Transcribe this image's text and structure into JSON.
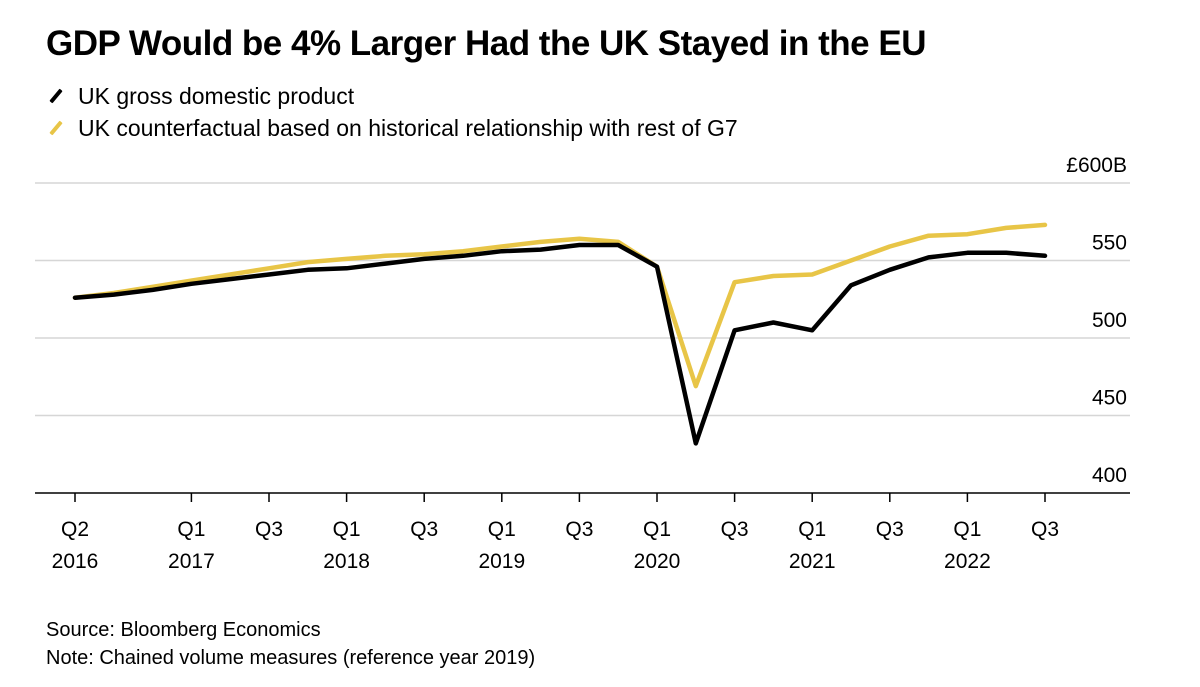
{
  "title": "GDP Would be 4% Larger Had the UK Stayed in the EU",
  "legend": [
    {
      "label": "UK gross domestic product",
      "color": "#000000"
    },
    {
      "label": "UK counterfactual based on historical relationship with rest of G7",
      "color": "#e8c547"
    }
  ],
  "footer": {
    "source": "Source: Bloomberg Economics",
    "note": "Note: Chained volume measures (reference year 2019)"
  },
  "chart_data": {
    "type": "line",
    "x": [
      "2016 Q2",
      "2016 Q3",
      "2016 Q4",
      "2017 Q1",
      "2017 Q2",
      "2017 Q3",
      "2017 Q4",
      "2018 Q1",
      "2018 Q2",
      "2018 Q3",
      "2018 Q4",
      "2019 Q1",
      "2019 Q2",
      "2019 Q3",
      "2019 Q4",
      "2020 Q1",
      "2020 Q2",
      "2020 Q3",
      "2020 Q4",
      "2021 Q1",
      "2021 Q2",
      "2021 Q3",
      "2021 Q4",
      "2022 Q1",
      "2022 Q2",
      "2022 Q3"
    ],
    "series": [
      {
        "name": "UK gross domestic product",
        "color": "#000000",
        "values": [
          526,
          528,
          531,
          535,
          538,
          541,
          544,
          545,
          548,
          551,
          553,
          556,
          557,
          560,
          560,
          546,
          432,
          505,
          510,
          505,
          534,
          544,
          552,
          555,
          555,
          553
        ]
      },
      {
        "name": "UK counterfactual based on historical relationship with rest of G7",
        "color": "#e8c547",
        "values": [
          526,
          529,
          533,
          537,
          541,
          545,
          549,
          551,
          553,
          554,
          556,
          559,
          562,
          564,
          562,
          546,
          469,
          536,
          540,
          541,
          550,
          559,
          566,
          567,
          571,
          573
        ]
      }
    ],
    "y_ticks": [
      {
        "value": 600,
        "label": "£600B"
      },
      {
        "value": 550,
        "label": "550"
      },
      {
        "value": 500,
        "label": "500"
      },
      {
        "value": 450,
        "label": "450"
      },
      {
        "value": 400,
        "label": "400"
      }
    ],
    "x_ticks": [
      {
        "index": 0,
        "line1": "Q2",
        "line2": "2016"
      },
      {
        "index": 3,
        "line1": "Q1",
        "line2": "2017"
      },
      {
        "index": 5,
        "line1": "Q3",
        "line2": ""
      },
      {
        "index": 7,
        "line1": "Q1",
        "line2": "2018"
      },
      {
        "index": 9,
        "line1": "Q3",
        "line2": ""
      },
      {
        "index": 11,
        "line1": "Q1",
        "line2": "2019"
      },
      {
        "index": 13,
        "line1": "Q3",
        "line2": ""
      },
      {
        "index": 15,
        "line1": "Q1",
        "line2": "2020"
      },
      {
        "index": 17,
        "line1": "Q3",
        "line2": ""
      },
      {
        "index": 19,
        "line1": "Q1",
        "line2": "2021"
      },
      {
        "index": 21,
        "line1": "Q3",
        "line2": ""
      },
      {
        "index": 23,
        "line1": "Q1",
        "line2": "2022"
      },
      {
        "index": 25,
        "line1": "Q3",
        "line2": ""
      }
    ],
    "ylim": [
      400,
      600
    ],
    "grid": true
  }
}
